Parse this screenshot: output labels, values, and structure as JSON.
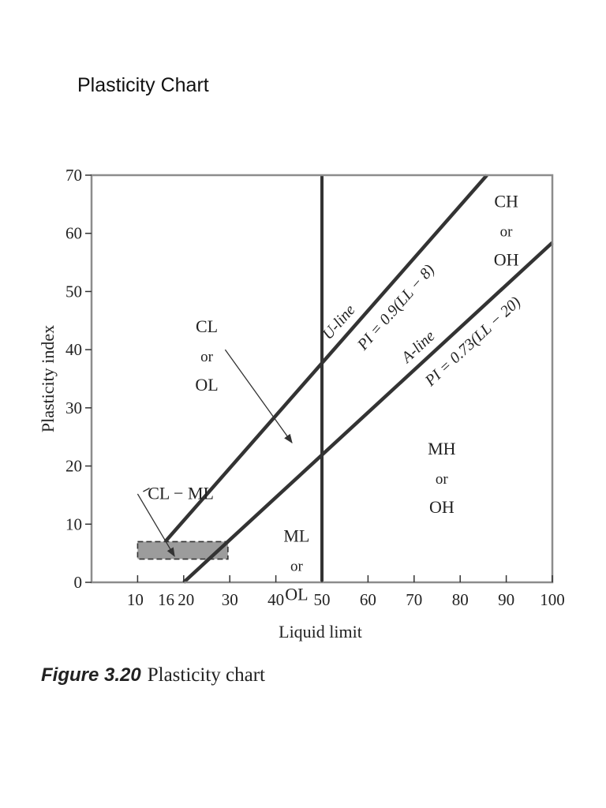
{
  "page": {
    "title": "Plasticity Chart",
    "caption_number": "Figure 3.20",
    "caption_text": "Plasticity chart"
  },
  "colors": {
    "frame": "#8c8c8c",
    "line": "#333333",
    "shade": "#9c9c9c",
    "text": "#222222"
  },
  "chart_data": {
    "type": "line",
    "xlabel": "Liquid limit",
    "ylabel": "Plasticity index",
    "xlim": [
      0,
      100
    ],
    "ylim": [
      0,
      70
    ],
    "x_ticks": [
      10,
      16,
      20,
      30,
      40,
      50,
      60,
      70,
      80,
      90,
      100
    ],
    "y_ticks": [
      0,
      10,
      20,
      30,
      40,
      50,
      60,
      70
    ],
    "grid": false,
    "lines": [
      {
        "id": "u-line",
        "label": "U-line",
        "equation": "PI = 0.9(LL − 8)",
        "x": [
          16,
          85.8
        ],
        "y": [
          7,
          70
        ]
      },
      {
        "id": "a-line",
        "label": "A-line",
        "equation": "PI = 0.73(LL − 20)",
        "x": [
          20,
          100
        ],
        "y": [
          0,
          58.4
        ]
      },
      {
        "id": "ll50-line",
        "label": "",
        "x": [
          50,
          50
        ],
        "y": [
          0,
          70
        ]
      }
    ],
    "zones": [
      {
        "id": "cl-ol",
        "lines": [
          "CL",
          "or",
          "OL"
        ],
        "x": 25,
        "y": 43
      },
      {
        "id": "ch-oh",
        "lines": [
          "CH",
          "or",
          "OH"
        ],
        "x": 90,
        "y": 64.5
      },
      {
        "id": "mh-oh",
        "lines": [
          "MH",
          "or",
          "OH"
        ],
        "x": 76,
        "y": 22
      },
      {
        "id": "ml-ol",
        "lines": [
          "ML",
          "or",
          "OL"
        ],
        "x": 44.5,
        "y": 7
      }
    ],
    "cl_ml_zone": {
      "label": "CL − ML",
      "x": [
        10,
        29.6
      ],
      "y": [
        4,
        7
      ]
    },
    "arrows": [
      {
        "from_x": 29,
        "from_y": 40,
        "to_x": 43.5,
        "to_y": 24
      },
      {
        "from_x": 10,
        "from_y": 15.2,
        "to_x": 18,
        "to_y": 4.5
      }
    ]
  }
}
